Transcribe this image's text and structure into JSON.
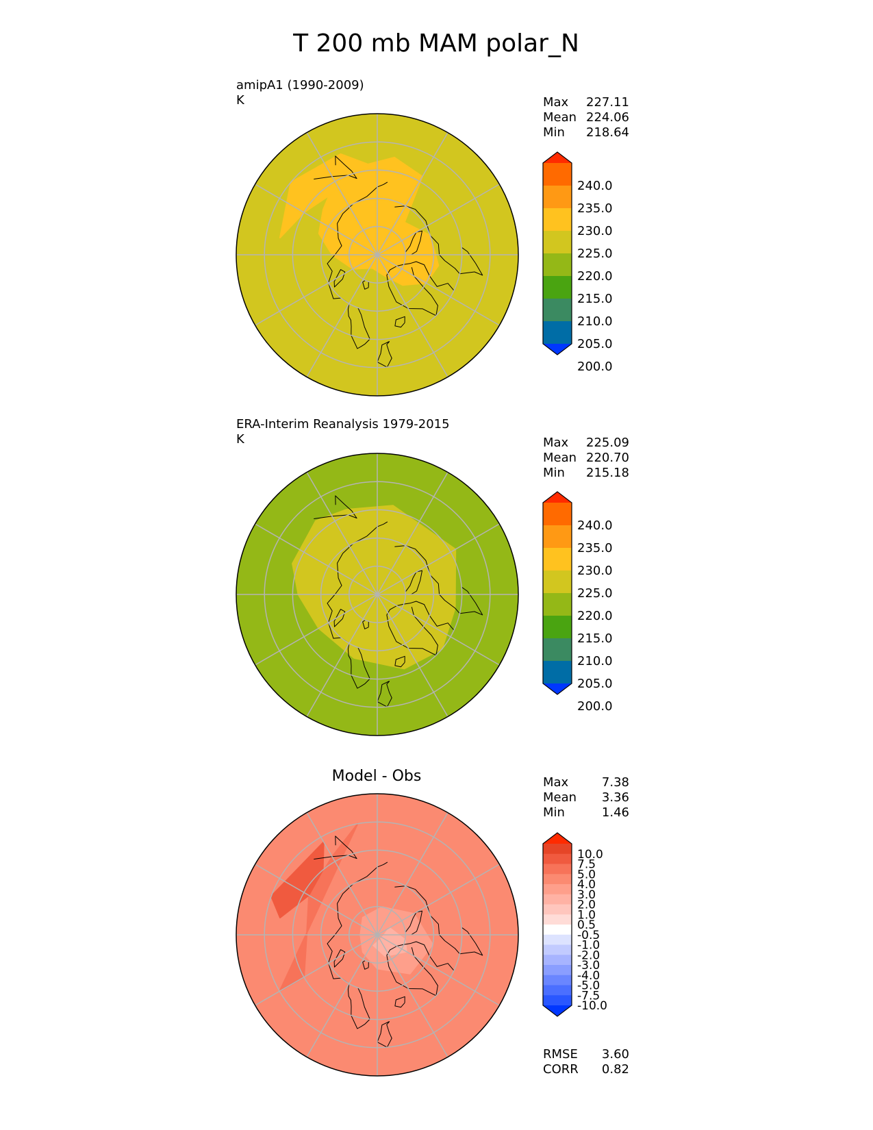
{
  "title": "T 200 mb MAM polar_N",
  "colors": {
    "field": [
      "#0037ff",
      "#006da6",
      "#3b8a61",
      "#4aa411",
      "#94b817",
      "#d2c61f",
      "#ffc21f",
      "#ff9914",
      "#ff6a00",
      "#ff2b00"
    ],
    "diff": [
      "#0037ff",
      "#2a57ff",
      "#4b6fff",
      "#6a86ff",
      "#8a9eff",
      "#a7b4ff",
      "#c2cbff",
      "#dde3ff",
      "#ffffff",
      "#ffdcd7",
      "#ffc6bd",
      "#ffb2a4",
      "#fe9f8b",
      "#fb8a71",
      "#f77359",
      "#f05a3f",
      "#e64527",
      "#ff2b00"
    ],
    "grid": "#b4b4b4",
    "coast": "#000000"
  },
  "panels": [
    {
      "id": "model",
      "label": "amipA1 (1990-2009)",
      "units": "K",
      "stats": [
        {
          "name": "Max",
          "value": "227.11"
        },
        {
          "name": "Mean",
          "value": "224.06"
        },
        {
          "name": "Min",
          "value": "218.64"
        }
      ],
      "colorbar_ticks": [
        "240.0",
        "235.0",
        "230.0",
        "225.0",
        "220.0",
        "215.0",
        "210.0",
        "205.0",
        "200.0"
      ],
      "base_level": 5,
      "regions": [
        {
          "level": 6,
          "lat_lon": [
            [
              75,
              -140
            ],
            [
              70,
              -110
            ],
            [
              68,
              -80
            ],
            [
              70,
              -60
            ],
            [
              76,
              -40
            ],
            [
              82,
              -20
            ],
            [
              85,
              20
            ],
            [
              80,
              60
            ],
            [
              74,
              90
            ],
            [
              68,
              110
            ],
            [
              65,
              130
            ],
            [
              60,
              150
            ],
            [
              58,
              170
            ],
            [
              55,
              -170
            ],
            [
              58,
              -150
            ]
          ]
        },
        {
          "level": 6,
          "lat_lon": [
            [
              55,
              100
            ],
            [
              60,
              120
            ],
            [
              63,
              150
            ],
            [
              58,
              175
            ],
            [
              52,
              160
            ],
            [
              50,
              130
            ]
          ]
        }
      ],
      "labels": []
    },
    {
      "id": "obs",
      "label": "ERA-Interim Reanalysis 1979-2015",
      "units": "K",
      "stats": [
        {
          "name": "Max",
          "value": "225.09"
        },
        {
          "name": "Mean",
          "value": "220.70"
        },
        {
          "name": "Min",
          "value": "215.18"
        }
      ],
      "colorbar_ticks": [
        "240.0",
        "235.0",
        "230.0",
        "225.0",
        "220.0",
        "215.0",
        "210.0",
        "205.0",
        "200.0"
      ],
      "base_level": 4,
      "regions": [
        {
          "level": 5,
          "lat_lon": [
            [
              58,
              -170
            ],
            [
              58,
              -120
            ],
            [
              62,
              -80
            ],
            [
              60,
              -50
            ],
            [
              62,
              -20
            ],
            [
              66,
              20
            ],
            [
              66,
              60
            ],
            [
              62,
              90
            ],
            [
              58,
              110
            ],
            [
              56,
              140
            ],
            [
              58,
              160
            ]
          ]
        },
        {
          "level": 5,
          "lat_lon": [
            [
              85,
              0
            ],
            [
              90,
              0
            ],
            [
              85,
              180
            ]
          ]
        }
      ],
      "labels": []
    },
    {
      "id": "diff",
      "label": "Model - Obs",
      "units": "",
      "stats": [
        {
          "name": "Max",
          "value": "7.38"
        },
        {
          "name": "Mean",
          "value": "3.36"
        },
        {
          "name": "Min",
          "value": "1.46"
        }
      ],
      "colorbar_ticks": [
        "10.0",
        "7.5",
        "5.0",
        "4.0",
        "3.0",
        "2.0",
        "1.0",
        "0.5",
        "-0.5",
        "-1.0",
        "-2.0",
        "-3.0",
        "-4.0",
        "-5.0",
        "-7.5",
        "-10.0"
      ],
      "base_level": 13,
      "regions": [
        {
          "level": 14,
          "lat_lon": [
            [
              60,
              60
            ],
            [
              65,
              90
            ],
            [
              62,
              120
            ],
            [
              58,
              150
            ],
            [
              50,
              170
            ],
            [
              50,
              60
            ]
          ]
        },
        {
          "level": 15,
          "lat_lon": [
            [
              55,
              100
            ],
            [
              62,
              120
            ],
            [
              60,
              140
            ],
            [
              52,
              150
            ],
            [
              50,
              110
            ]
          ]
        },
        {
          "level": 12,
          "lat_lon": [
            [
              80,
              -170
            ],
            [
              75,
              -120
            ],
            [
              70,
              -80
            ],
            [
              72,
              -40
            ],
            [
              78,
              0
            ],
            [
              82,
              40
            ],
            [
              84,
              90
            ],
            [
              82,
              140
            ]
          ]
        },
        {
          "level": 11,
          "lat_lon": [
            [
              85,
              -120
            ],
            [
              80,
              -80
            ],
            [
              78,
              -60
            ],
            [
              82,
              -20
            ],
            [
              86,
              20
            ],
            [
              88,
              -60
            ]
          ]
        }
      ],
      "labels": [],
      "extra_stats": [
        {
          "name": "RMSE",
          "value": "3.60"
        },
        {
          "name": "CORR",
          "value": "0.82"
        }
      ]
    }
  ]
}
